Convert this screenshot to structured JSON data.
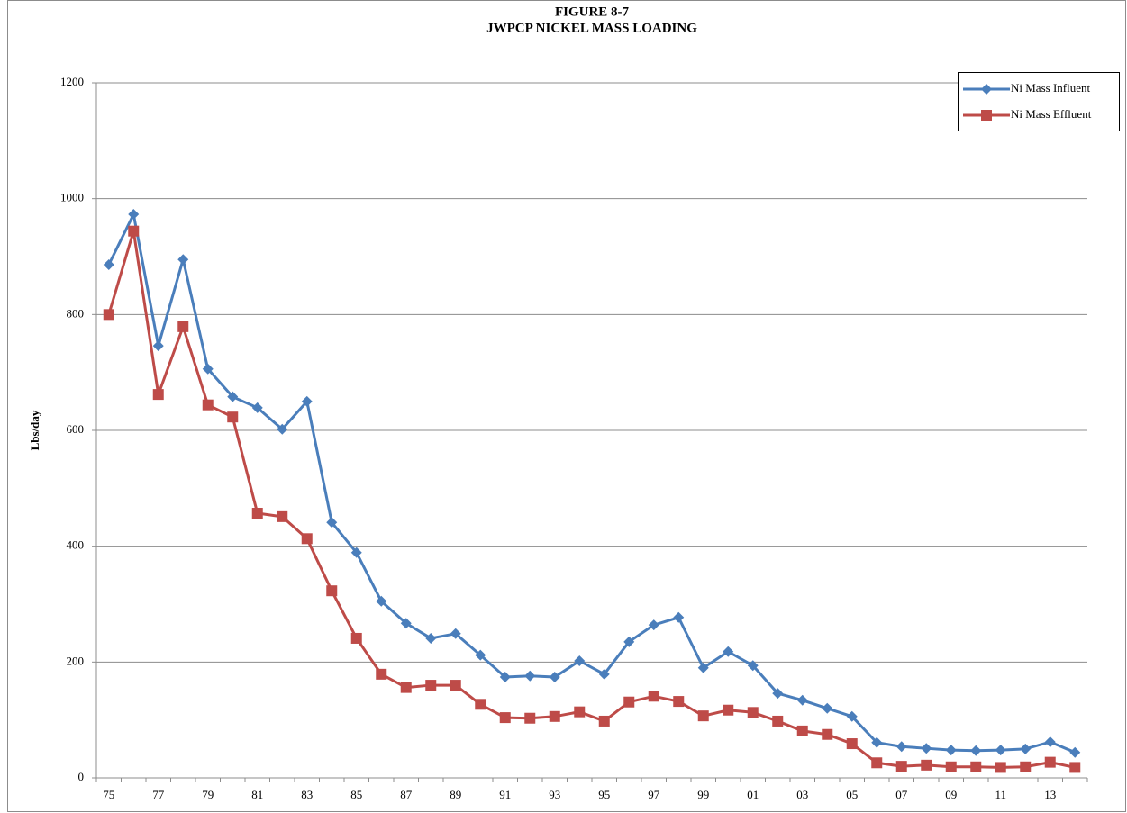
{
  "chart_data": {
    "type": "line",
    "title": "FIGURE 8-7",
    "subtitle": "JWPCP NICKEL MASS LOADING",
    "y_label": "Lbs/day",
    "categories": [
      "75",
      null,
      "77",
      null,
      "79",
      null,
      "81",
      null,
      "83",
      null,
      "85",
      null,
      "87",
      null,
      "89",
      null,
      "91",
      null,
      "93",
      null,
      "95",
      null,
      "97",
      null,
      "99",
      null,
      "01",
      null,
      "03",
      null,
      "05",
      null,
      "07",
      null,
      "09",
      null,
      "11",
      null,
      "13",
      null
    ],
    "series": [
      {
        "name": "Ni Mass Influent",
        "color": "#4a7ebb",
        "marker": "diamond",
        "values": [
          886,
          973,
          746,
          895,
          706,
          658,
          639,
          602,
          650,
          441,
          389,
          305,
          267,
          241,
          249,
          212,
          174,
          176,
          174,
          202,
          179,
          235,
          264,
          277,
          190,
          218,
          194,
          146,
          134,
          120,
          106,
          61,
          54,
          51,
          48,
          47,
          48,
          50,
          62,
          44
        ]
      },
      {
        "name": "Ni Mass Effluent",
        "color": "#be4b48",
        "marker": "square",
        "values": [
          800,
          944,
          662,
          779,
          644,
          623,
          457,
          451,
          413,
          323,
          241,
          179,
          156,
          160,
          160,
          127,
          104,
          103,
          106,
          114,
          98,
          131,
          141,
          132,
          107,
          117,
          113,
          98,
          81,
          75,
          59,
          26,
          20,
          22,
          19,
          19,
          18,
          19,
          27,
          18
        ]
      }
    ],
    "ylim": [
      0,
      1200
    ],
    "yticks": [
      0,
      200,
      400,
      600,
      800,
      1000,
      1200
    ],
    "grid": true,
    "legend": "top-right"
  }
}
